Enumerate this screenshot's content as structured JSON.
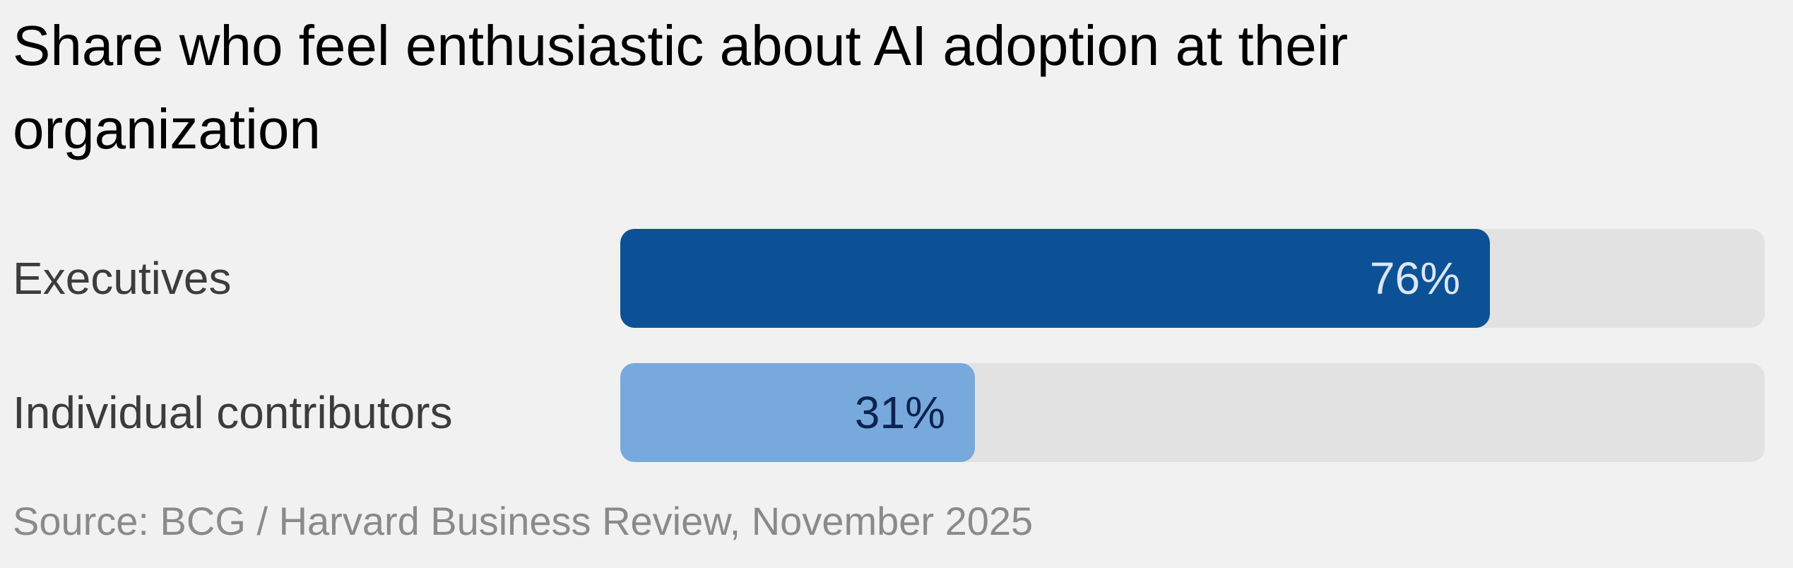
{
  "chart_data": {
    "type": "bar",
    "orientation": "horizontal",
    "title": "Share who feel enthusiastic about AI adoption at their organization",
    "categories": [
      "Executives",
      "Individual contributors"
    ],
    "values": [
      76,
      31
    ],
    "value_labels": [
      "76%",
      "31%"
    ],
    "xlim": [
      0,
      100
    ],
    "unit": "%",
    "bar_colors": [
      "#0c5196",
      "#78a9dc"
    ],
    "label_colors": [
      "#dbe7f5",
      "#0c2350"
    ],
    "track_color": "#e2e2e2",
    "grid": false,
    "legend": "none",
    "source": "Source: BCG / Harvard Business Review, November 2025"
  }
}
